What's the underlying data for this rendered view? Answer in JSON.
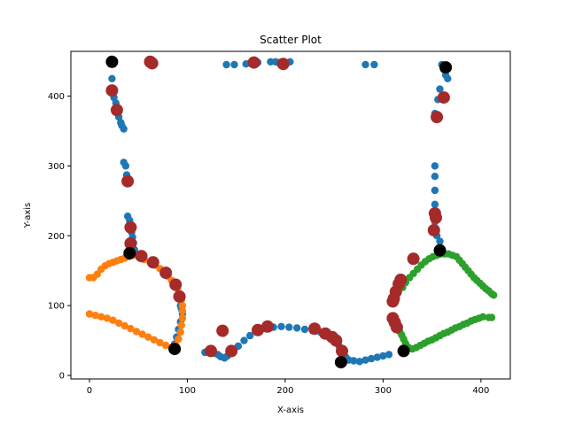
{
  "chart_data": {
    "type": "scatter",
    "title": "Scatter Plot",
    "xlabel": "X-axis",
    "ylabel": "Y-axis",
    "xlim": [
      -19,
      430
    ],
    "ylim": [
      -5,
      464
    ],
    "xticks": [
      0,
      100,
      200,
      300,
      400
    ],
    "yticks": [
      0,
      100,
      200,
      300,
      400
    ],
    "grid": false,
    "series": [
      {
        "color": "#1f77b4",
        "marker_size": "small",
        "points": [
          [
            23,
            425
          ],
          [
            24,
            410
          ],
          [
            25,
            398
          ],
          [
            27,
            390
          ],
          [
            30,
            370
          ],
          [
            32,
            362
          ],
          [
            33,
            358
          ],
          [
            35,
            353
          ],
          [
            35,
            305
          ],
          [
            37,
            300
          ],
          [
            38,
            287
          ],
          [
            39,
            280
          ],
          [
            39,
            228
          ],
          [
            41,
            222
          ],
          [
            42,
            212
          ],
          [
            43,
            205
          ],
          [
            44,
            198
          ],
          [
            45,
            190
          ],
          [
            46,
            180
          ],
          [
            93,
            100
          ],
          [
            94,
            95
          ],
          [
            95,
            88
          ],
          [
            93,
            77
          ],
          [
            91,
            66
          ],
          [
            89,
            55
          ],
          [
            87,
            45
          ],
          [
            86,
            38
          ],
          [
            60,
            449
          ],
          [
            62,
            447
          ],
          [
            64,
            446
          ],
          [
            66,
            446
          ],
          [
            140,
            445
          ],
          [
            148,
            445
          ],
          [
            160,
            446
          ],
          [
            164,
            447
          ],
          [
            172,
            448
          ],
          [
            185,
            449
          ],
          [
            190,
            449
          ],
          [
            193,
            448
          ],
          [
            198,
            448
          ],
          [
            205,
            449
          ],
          [
            282,
            445
          ],
          [
            291,
            445
          ],
          [
            360,
            445
          ],
          [
            362,
            438
          ],
          [
            364,
            430
          ],
          [
            366,
            425
          ],
          [
            358,
            410
          ],
          [
            356,
            395
          ],
          [
            353,
            375
          ],
          [
            353,
            300
          ],
          [
            353,
            285
          ],
          [
            353,
            265
          ],
          [
            353,
            245
          ],
          [
            352,
            235
          ],
          [
            353,
            220
          ],
          [
            354,
            210
          ],
          [
            355,
            200
          ],
          [
            358,
            192
          ],
          [
            118,
            33
          ],
          [
            123,
            33
          ],
          [
            127,
            32
          ],
          [
            131,
            30
          ],
          [
            134,
            27
          ],
          [
            138,
            25
          ],
          [
            141,
            28
          ],
          [
            144,
            32
          ],
          [
            148,
            38
          ],
          [
            152,
            42
          ],
          [
            158,
            50
          ],
          [
            164,
            57
          ],
          [
            172,
            63
          ],
          [
            180,
            67
          ],
          [
            188,
            69
          ],
          [
            196,
            70
          ],
          [
            204,
            69
          ],
          [
            212,
            68
          ],
          [
            220,
            66
          ],
          [
            228,
            64
          ],
          [
            236,
            62
          ],
          [
            244,
            57
          ],
          [
            250,
            50
          ],
          [
            255,
            42
          ],
          [
            259,
            33
          ],
          [
            262,
            26
          ],
          [
            265,
            22
          ],
          [
            270,
            21
          ],
          [
            276,
            20
          ],
          [
            282,
            22
          ],
          [
            288,
            24
          ],
          [
            294,
            26
          ],
          [
            300,
            28
          ],
          [
            306,
            30
          ]
        ]
      },
      {
        "color": "#ff7f0e",
        "marker_size": "small",
        "points": [
          [
            0,
            140
          ],
          [
            4,
            140
          ],
          [
            8,
            145
          ],
          [
            12,
            152
          ],
          [
            16,
            157
          ],
          [
            20,
            160
          ],
          [
            24,
            162
          ],
          [
            28,
            164
          ],
          [
            32,
            166
          ],
          [
            36,
            168
          ],
          [
            40,
            170
          ],
          [
            44,
            172
          ],
          [
            0,
            88
          ],
          [
            6,
            86
          ],
          [
            12,
            84
          ],
          [
            18,
            82
          ],
          [
            24,
            79
          ],
          [
            30,
            75
          ],
          [
            36,
            71
          ],
          [
            42,
            67
          ],
          [
            48,
            63
          ],
          [
            54,
            59
          ],
          [
            60,
            55
          ],
          [
            66,
            51
          ],
          [
            72,
            47
          ],
          [
            78,
            43
          ],
          [
            84,
            40
          ],
          [
            88,
            43
          ],
          [
            91,
            52
          ],
          [
            93,
            62
          ],
          [
            94,
            72
          ],
          [
            95,
            82
          ],
          [
            95,
            92
          ],
          [
            95,
            100
          ],
          [
            94,
            108
          ],
          [
            92,
            117
          ],
          [
            90,
            124
          ],
          [
            87,
            130
          ],
          [
            84,
            136
          ],
          [
            80,
            142
          ],
          [
            76,
            148
          ],
          [
            72,
            153
          ],
          [
            67,
            158
          ],
          [
            62,
            162
          ],
          [
            56,
            166
          ],
          [
            50,
            170
          ]
        ]
      },
      {
        "color": "#2ca02c",
        "marker_size": "small",
        "points": [
          [
            317,
            63
          ],
          [
            319,
            58
          ],
          [
            321,
            52
          ],
          [
            323,
            46
          ],
          [
            326,
            40
          ],
          [
            330,
            38
          ],
          [
            334,
            40
          ],
          [
            338,
            43
          ],
          [
            342,
            46
          ],
          [
            346,
            49
          ],
          [
            350,
            51
          ],
          [
            354,
            54
          ],
          [
            358,
            57
          ],
          [
            362,
            60
          ],
          [
            366,
            62
          ],
          [
            370,
            65
          ],
          [
            374,
            68
          ],
          [
            378,
            70
          ],
          [
            382,
            73
          ],
          [
            386,
            75
          ],
          [
            390,
            78
          ],
          [
            394,
            80
          ],
          [
            398,
            82
          ],
          [
            402,
            84
          ],
          [
            408,
            83
          ],
          [
            411,
            83
          ],
          [
            320,
            126
          ],
          [
            323,
            133
          ],
          [
            327,
            140
          ],
          [
            331,
            146
          ],
          [
            335,
            152
          ],
          [
            339,
            158
          ],
          [
            343,
            163
          ],
          [
            347,
            167
          ],
          [
            351,
            170
          ],
          [
            355,
            172
          ],
          [
            359,
            174
          ],
          [
            363,
            174
          ],
          [
            367,
            174
          ],
          [
            371,
            172
          ],
          [
            375,
            170
          ],
          [
            378,
            165
          ],
          [
            381,
            160
          ],
          [
            384,
            155
          ],
          [
            387,
            150
          ],
          [
            390,
            145
          ],
          [
            393,
            140
          ],
          [
            396,
            136
          ],
          [
            399,
            132
          ],
          [
            402,
            128
          ],
          [
            405,
            124
          ],
          [
            408,
            121
          ],
          [
            411,
            117
          ],
          [
            413,
            115
          ]
        ]
      },
      {
        "color": "#a52a2a",
        "marker_size": "medium",
        "points": [
          [
            23,
            408
          ],
          [
            28,
            380
          ],
          [
            39,
            278
          ],
          [
            42,
            212
          ],
          [
            42,
            189
          ],
          [
            53,
            171
          ],
          [
            65,
            162
          ],
          [
            78,
            147
          ],
          [
            88,
            130
          ],
          [
            92,
            113
          ],
          [
            62,
            449
          ],
          [
            64,
            447
          ],
          [
            168,
            448
          ],
          [
            198,
            446
          ],
          [
            362,
            398
          ],
          [
            355,
            370
          ],
          [
            353,
            232
          ],
          [
            354,
            226
          ],
          [
            352,
            208
          ],
          [
            331,
            167
          ],
          [
            318,
            137
          ],
          [
            316,
            131
          ],
          [
            313,
            120
          ],
          [
            311,
            110
          ],
          [
            310,
            106
          ],
          [
            310,
            82
          ],
          [
            312,
            76
          ],
          [
            314,
            69
          ],
          [
            124,
            35
          ],
          [
            136,
            64
          ],
          [
            145,
            35
          ],
          [
            172,
            65
          ],
          [
            182,
            70
          ],
          [
            230,
            67
          ],
          [
            241,
            60
          ],
          [
            248,
            55
          ],
          [
            252,
            50
          ],
          [
            258,
            35
          ]
        ]
      },
      {
        "color": "#000000",
        "marker_size": "large",
        "points": [
          [
            23,
            449
          ],
          [
            364,
            441
          ],
          [
            41,
            175
          ],
          [
            358,
            179
          ],
          [
            87,
            38
          ],
          [
            321,
            35
          ],
          [
            257,
            19
          ]
        ]
      }
    ]
  }
}
